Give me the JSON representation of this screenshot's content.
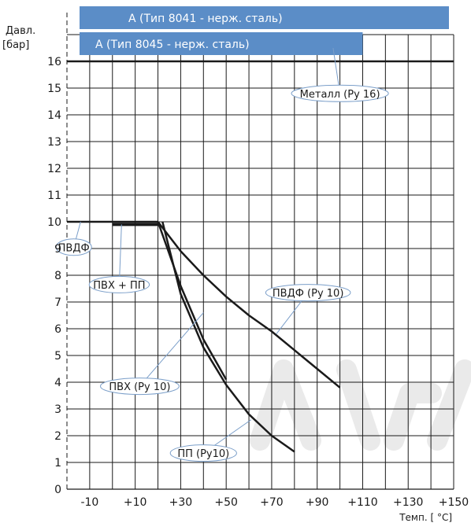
{
  "chart_data": {
    "type": "line",
    "ylabel_lines": [
      "Давл.",
      "[бар]"
    ],
    "xlabel": "Темп. [ °C]",
    "x_tick_labels": [
      "-10",
      "+10",
      "+30",
      "+50",
      "+70",
      "+90",
      "+110",
      "+130",
      "+150"
    ],
    "y_tick_labels": [
      "0",
      "1",
      "2",
      "3",
      "4",
      "5",
      "6",
      "7",
      "8",
      "9",
      "10",
      "11",
      "12",
      "13",
      "14",
      "15",
      "16"
    ],
    "xlim": [
      -20,
      150
    ],
    "ylim": [
      0,
      17
    ],
    "grid": true,
    "colors": {
      "band": "#5b8dc7",
      "line": "#1a1a1a",
      "grid": "#1a1a1a",
      "callout": "#7a9ec9",
      "watermark": "#d9d9d9"
    },
    "range_bands": [
      {
        "label": "A (Тип 8041 - нерж. сталь)",
        "x_from": -20,
        "x_to": 150
      },
      {
        "label": "A (Тип 8045 - нерж. сталь)",
        "x_from": -20,
        "x_to": 110
      }
    ],
    "series": [
      {
        "name": "Металл (Ру 16)",
        "x": [
          -20,
          150
        ],
        "y": [
          16,
          16
        ],
        "width": 2.5
      },
      {
        "name": "ПВДФ",
        "x": [
          -20,
          20
        ],
        "y": [
          10,
          10
        ],
        "width": 2.5
      },
      {
        "name": "ПВХ + ПП",
        "x": [
          0,
          20
        ],
        "y": [
          9.9,
          9.9
        ],
        "width": 4
      },
      {
        "name": "ПВДФ (Ру 10)",
        "x": [
          20,
          30,
          40,
          50,
          60,
          70,
          80,
          90,
          100
        ],
        "y": [
          10,
          8.9,
          8,
          7.2,
          6.5,
          5.9,
          5.2,
          4.5,
          3.8
        ],
        "width": 2.5
      },
      {
        "name": "ПВХ (Ру 10)",
        "x": [
          20,
          30,
          40,
          50
        ],
        "y": [
          10,
          7.6,
          5.6,
          4.1
        ],
        "width": 2.5
      },
      {
        "name": "ПП (Ру10)",
        "x": [
          22,
          30,
          40,
          50,
          60,
          70,
          80
        ],
        "y": [
          10,
          7.3,
          5.3,
          3.9,
          2.8,
          2.0,
          1.4
        ],
        "width": 2.5
      }
    ],
    "callouts": [
      {
        "text": "Металл (Ру 16)",
        "ax": 97,
        "ay": 16.5,
        "lx": 100,
        "ly": 14.8
      },
      {
        "text": "ПВДФ",
        "ax": -14,
        "ay": 10,
        "lx": -17,
        "ly": 9.05
      },
      {
        "text": "ПВХ + ПП",
        "ax": 4,
        "ay": 9.9,
        "lx": 3,
        "ly": 7.65
      },
      {
        "text": "ПВДФ (Ру 10)",
        "ax": 72,
        "ay": 5.8,
        "lx": 86,
        "ly": 7.35
      },
      {
        "text": "ПВХ (Ру 10)",
        "ax": 40,
        "ay": 6.6,
        "lx": 12,
        "ly": 3.85
      },
      {
        "text": "ПП (Ру10)",
        "ax": 61,
        "ay": 2.6,
        "lx": 40,
        "ly": 1.35
      }
    ]
  }
}
